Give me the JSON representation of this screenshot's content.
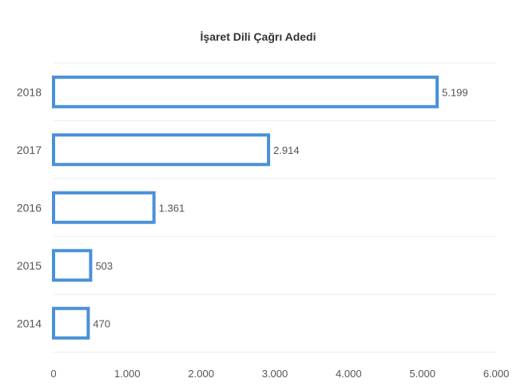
{
  "chart_data": {
    "type": "bar",
    "orientation": "horizontal",
    "title": "İşaret Dili Çağrı Adedi",
    "categories": [
      "2018",
      "2017",
      "2016",
      "2015",
      "2014"
    ],
    "values": [
      5199,
      2914,
      1361,
      503,
      470
    ],
    "value_labels": [
      "5.199",
      "2.914",
      "1.361",
      "503",
      "470"
    ],
    "xlim": [
      0,
      6000
    ],
    "x_ticks": [
      0,
      1000,
      2000,
      3000,
      4000,
      5000,
      6000
    ],
    "x_tick_labels": [
      "0",
      "1.000",
      "2.000",
      "3.000",
      "4.000",
      "5.000",
      "6.000"
    ],
    "xlabel": "",
    "ylabel": "",
    "grid": true,
    "colors": {
      "bar_stroke": "#4a90d9",
      "bar_fill": "#ffffff"
    }
  }
}
